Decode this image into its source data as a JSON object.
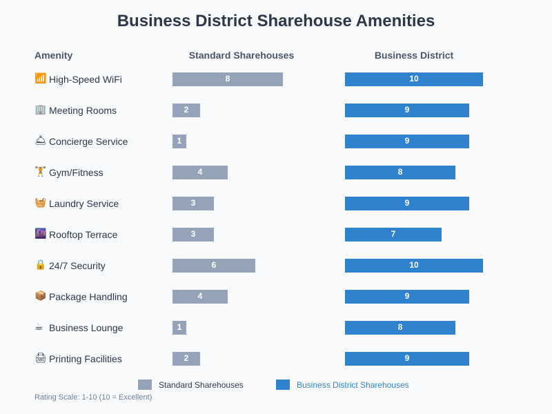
{
  "chart_data": {
    "type": "bar",
    "title": "Business District Sharehouse Amenities",
    "column_headers": {
      "amenity": "Amenity",
      "standard": "Standard Sharehouses",
      "business": "Business District"
    },
    "categories": [
      "High-Speed WiFi",
      "Meeting Rooms",
      "Concierge Service",
      "Gym/Fitness",
      "Laundry Service",
      "Rooftop Terrace",
      "24/7 Security",
      "Package Handling",
      "Business Lounge",
      "Printing Facilities"
    ],
    "icons": [
      "📶",
      "🏢",
      "🛎",
      "🏋",
      "🧺",
      "🌆",
      "🔒",
      "📦",
      "☕",
      "🖨"
    ],
    "series": [
      {
        "name": "Standard Sharehouses",
        "color": "#94a3b8",
        "values": [
          8,
          2,
          1,
          4,
          3,
          3,
          6,
          4,
          1,
          2
        ]
      },
      {
        "name": "Business District Sharehouses",
        "color": "#3182ce",
        "values": [
          10,
          9,
          9,
          8,
          9,
          7,
          10,
          9,
          8,
          9
        ]
      }
    ],
    "xlim": [
      0,
      10
    ],
    "legend": "bottom",
    "note": "Rating Scale: 1-10 (10 = Excellent)"
  }
}
